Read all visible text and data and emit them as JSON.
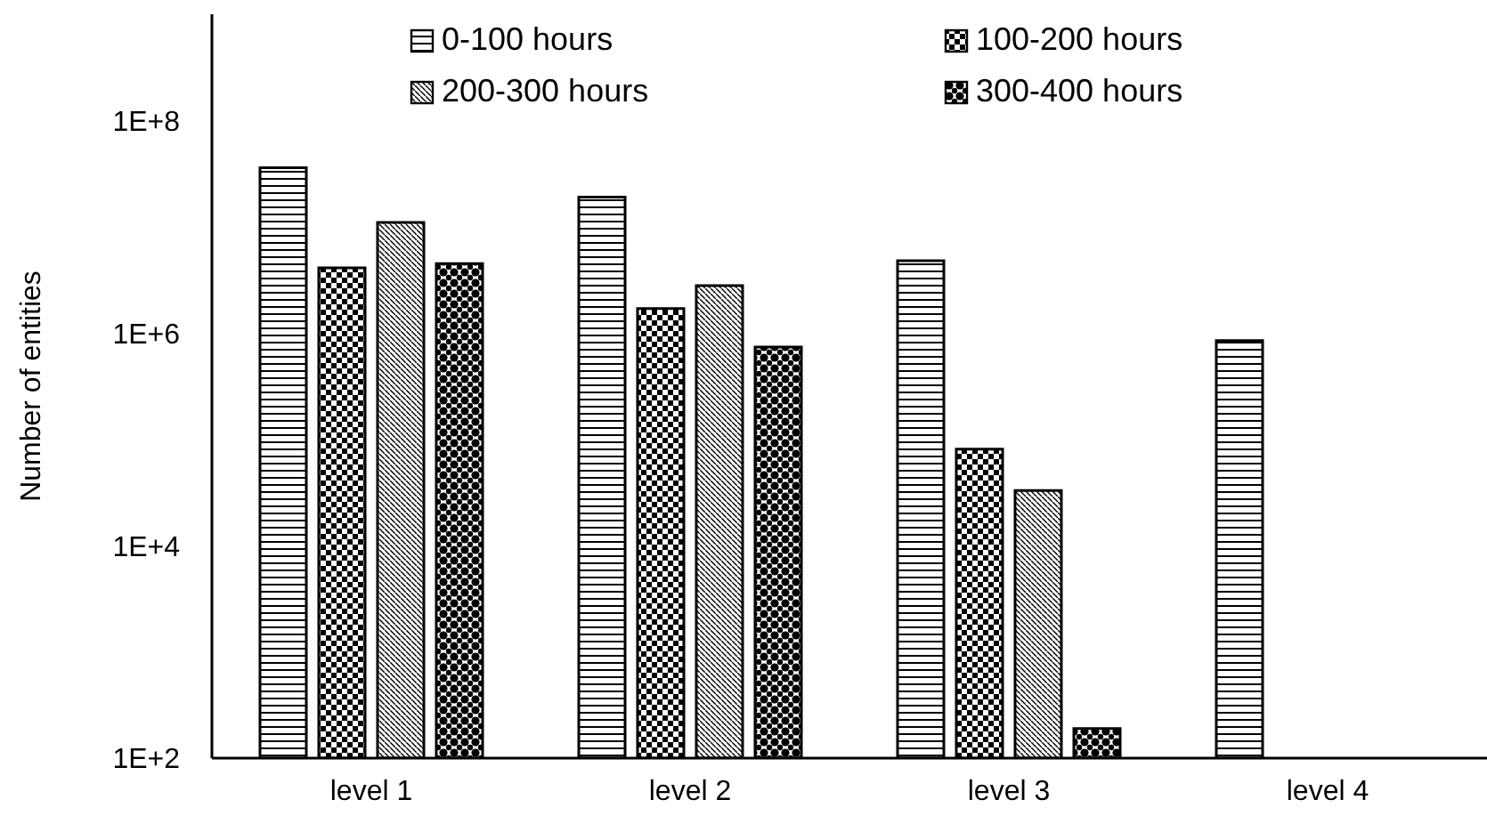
{
  "chart_data": {
    "type": "bar",
    "ylabel": "Number of entities",
    "categories": [
      "level 1",
      "level 2",
      "level 3",
      "level 4"
    ],
    "series": [
      {
        "name": "0-100 hours",
        "color": "#000000",
        "values": [
          36000000,
          19000000,
          4800000,
          850000
        ]
      },
      {
        "name": "100-200 hours",
        "color": "#000000",
        "values": [
          4100000,
          1700000,
          81000,
          null
        ]
      },
      {
        "name": "200-300 hours",
        "color": "#000000",
        "values": [
          11000000,
          2800000,
          33000,
          null
        ]
      },
      {
        "name": "300-400 hours",
        "color": "#000000",
        "values": [
          4500000,
          740000,
          190,
          null
        ]
      }
    ],
    "log": true,
    "ylim": [
      100,
      1000000000
    ],
    "yticks": [
      {
        "value": 100,
        "label": "1E+2"
      },
      {
        "value": 10000,
        "label": "1E+4"
      },
      {
        "value": 1000000,
        "label": "1E+6"
      },
      {
        "value": 100000000,
        "label": "1E+8"
      }
    ],
    "grid": false,
    "legend": "top"
  }
}
